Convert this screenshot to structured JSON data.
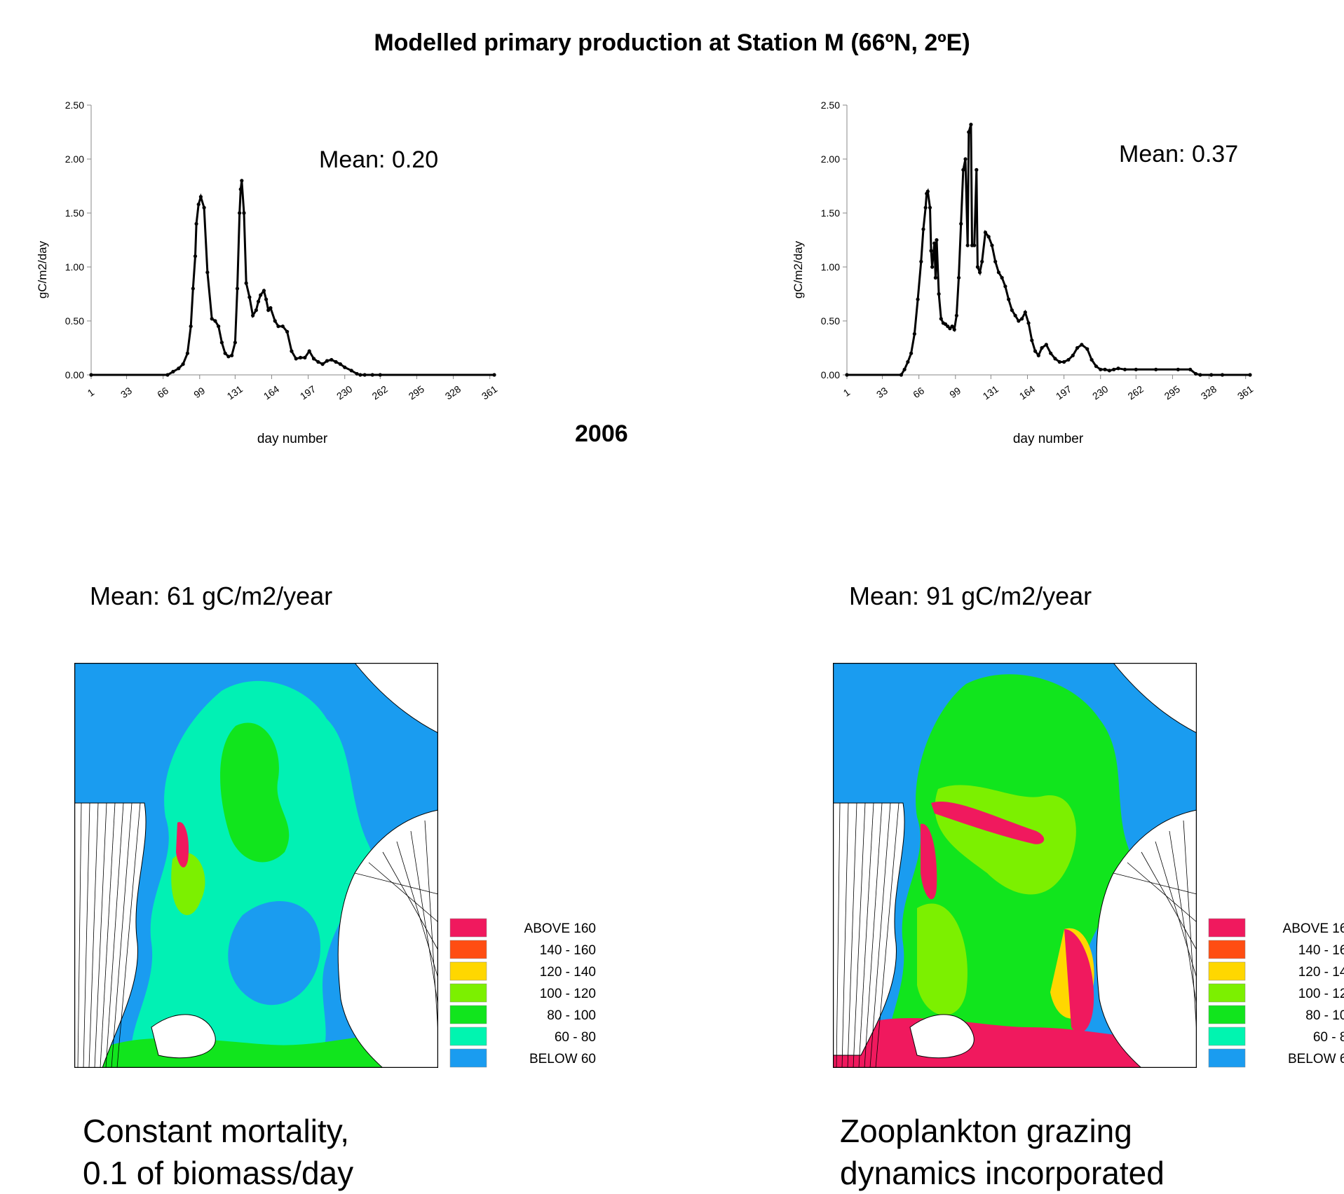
{
  "title": "Modelled primary production at Station M (66ºN, 2ºE)",
  "year_label": "2006",
  "chart_data": [
    {
      "type": "line",
      "xlabel": "day number",
      "ylabel": "gC/m2/day",
      "ylim": [
        0,
        2.5
      ],
      "xlim": [
        1,
        365
      ],
      "yticks": [
        "0.00",
        "0.50",
        "1.00",
        "1.50",
        "2.00",
        "2.50"
      ],
      "xticks": [
        "1",
        "33",
        "66",
        "99",
        "131",
        "164",
        "197",
        "230",
        "262",
        "295",
        "328",
        "361"
      ],
      "annotation": "Mean: 0.20",
      "series": [
        {
          "x": [
            1,
            70,
            75,
            80,
            84,
            88,
            91,
            93,
            95,
            96,
            98,
            100,
            103,
            106,
            110,
            113,
            116,
            119,
            122,
            125,
            128,
            131,
            133,
            135,
            136,
            137,
            139,
            141,
            144,
            147,
            150,
            152,
            154,
            157,
            159,
            161,
            163,
            167,
            170,
            174,
            178,
            182,
            186,
            190,
            194,
            198,
            202,
            206,
            210,
            214,
            218,
            222,
            226,
            230,
            236,
            241,
            244,
            248,
            255,
            262,
            365
          ],
          "y": [
            0,
            0,
            0.03,
            0.06,
            0.1,
            0.2,
            0.45,
            0.8,
            1.1,
            1.4,
            1.58,
            1.65,
            1.55,
            0.95,
            0.52,
            0.5,
            0.45,
            0.3,
            0.2,
            0.17,
            0.18,
            0.3,
            0.8,
            1.5,
            1.72,
            1.8,
            1.5,
            0.85,
            0.72,
            0.55,
            0.6,
            0.68,
            0.74,
            0.78,
            0.7,
            0.6,
            0.62,
            0.5,
            0.45,
            0.45,
            0.4,
            0.22,
            0.15,
            0.16,
            0.16,
            0.22,
            0.15,
            0.12,
            0.1,
            0.13,
            0.14,
            0.12,
            0.1,
            0.07,
            0.04,
            0.01,
            0,
            0,
            0,
            0,
            0
          ]
        }
      ]
    },
    {
      "type": "line",
      "xlabel": "day number",
      "ylabel": "gC/m2/day",
      "ylim": [
        0,
        2.5
      ],
      "xlim": [
        1,
        365
      ],
      "yticks": [
        "0.00",
        "0.50",
        "1.00",
        "1.50",
        "2.00",
        "2.50"
      ],
      "xticks": [
        "1",
        "33",
        "66",
        "99",
        "131",
        "164",
        "197",
        "230",
        "262",
        "295",
        "328",
        "361"
      ],
      "annotation": "Mean: 0.37",
      "series": [
        {
          "x": [
            1,
            50,
            53,
            56,
            59,
            62,
            65,
            68,
            70,
            72,
            73,
            74,
            76,
            77,
            78,
            80,
            81,
            82,
            84,
            86,
            88,
            90,
            92,
            94,
            96,
            98,
            100,
            102,
            104,
            106,
            108,
            110,
            111,
            113,
            114,
            116,
            118,
            119,
            121,
            123,
            126,
            129,
            132,
            135,
            138,
            141,
            144,
            147,
            150,
            153,
            156,
            159,
            162,
            165,
            168,
            171,
            174,
            177,
            181,
            185,
            189,
            193,
            197,
            201,
            205,
            209,
            213,
            218,
            222,
            226,
            230,
            234,
            238,
            242,
            246,
            252,
            262,
            280,
            300,
            311,
            316,
            320,
            330,
            340,
            365
          ],
          "y": [
            0,
            0,
            0.05,
            0.12,
            0.2,
            0.38,
            0.7,
            1.05,
            1.35,
            1.55,
            1.68,
            1.7,
            1.55,
            1.15,
            1.0,
            1.22,
            0.9,
            1.25,
            0.75,
            0.52,
            0.48,
            0.47,
            0.45,
            0.43,
            0.45,
            0.42,
            0.55,
            0.9,
            1.4,
            1.9,
            2.0,
            1.2,
            2.25,
            2.32,
            1.2,
            1.2,
            1.9,
            1.0,
            0.95,
            1.05,
            1.32,
            1.28,
            1.2,
            1.05,
            0.95,
            0.9,
            0.82,
            0.7,
            0.6,
            0.55,
            0.5,
            0.52,
            0.58,
            0.48,
            0.32,
            0.22,
            0.18,
            0.25,
            0.28,
            0.2,
            0.15,
            0.12,
            0.12,
            0.14,
            0.18,
            0.25,
            0.28,
            0.24,
            0.14,
            0.08,
            0.05,
            0.05,
            0.04,
            0.05,
            0.06,
            0.05,
            0.05,
            0.05,
            0.05,
            0.05,
            0.01,
            0,
            0,
            0,
            0
          ]
        }
      ]
    }
  ],
  "map_panels": [
    {
      "mean": "Mean: 61 gC/m2/year",
      "caption_lines": [
        "Constant mortality,",
        "0.1 of biomass/day"
      ]
    },
    {
      "mean": "Mean: 91 gC/m2/year",
      "caption_lines": [
        "Zooplankton grazing",
        "dynamics incorporated"
      ]
    }
  ],
  "legend": [
    {
      "label": "ABOVE   160",
      "color": "#f0195e"
    },
    {
      "label": "140 - 160",
      "color": "#ff4d12"
    },
    {
      "label": "120 - 140",
      "color": "#ffd700"
    },
    {
      "label": "100 - 120",
      "color": "#7cf000"
    },
    {
      "label": "80 - 100",
      "color": "#11e51d"
    },
    {
      "label": "60 -   80",
      "color": "#00f5b0"
    },
    {
      "label": "BELOW    60",
      "color": "#1a9cf0"
    }
  ],
  "colors": {
    "line": "#000000",
    "land": "#ffffff",
    "grid": "#000000"
  }
}
